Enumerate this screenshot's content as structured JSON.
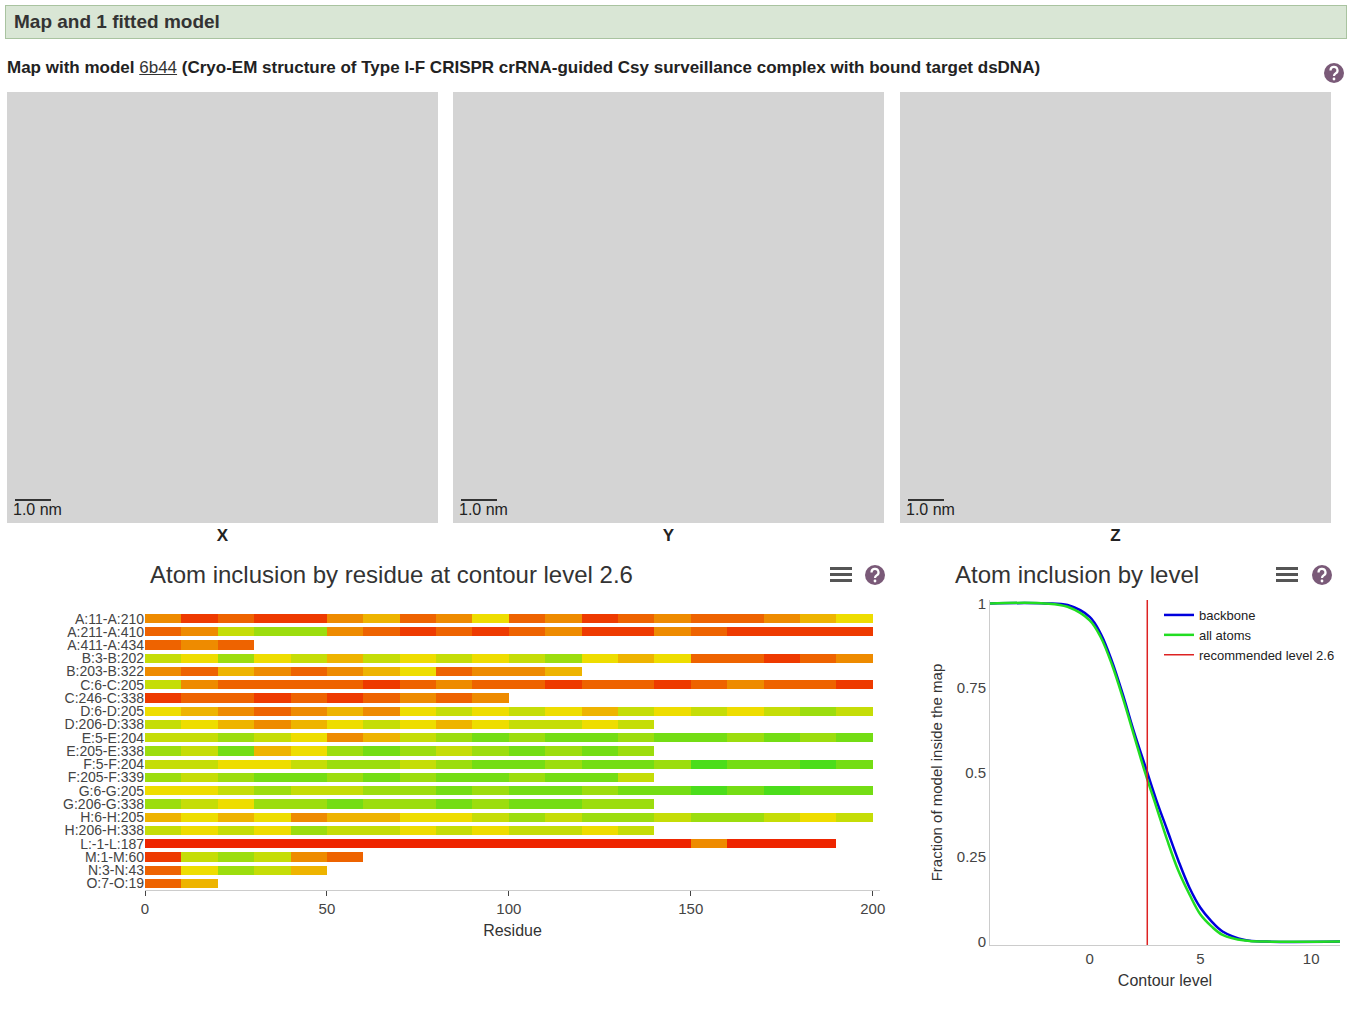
{
  "header": "Map and 1 fitted model",
  "subtitle": {
    "prefix": "Map with model",
    "model": "6b44",
    "description": "(Cryo-EM structure of Type I-F CRISPR crRNA-guided Csy surveillance complex with bound target dsDNA)"
  },
  "views": [
    {
      "label": "X",
      "scale_bar": "1.0 nm"
    },
    {
      "label": "Y",
      "scale_bar": "1.0 nm"
    },
    {
      "label": "Z",
      "scale_bar": "1.0 nm"
    }
  ],
  "chart_data": [
    {
      "type": "heatmap",
      "title": "Atom inclusion by residue at contour level 2.6",
      "x_label": "Residue",
      "x": [
        5,
        15,
        25,
        35,
        45,
        55,
        65,
        75,
        85,
        95,
        105,
        115,
        125,
        135,
        145,
        155,
        165,
        175,
        185,
        195
      ],
      "xlim": [
        0,
        202
      ],
      "xticks": [
        0,
        50,
        100,
        150,
        200
      ],
      "grid": false,
      "color_range": [
        0,
        1
      ],
      "colors": [
        "#ee1100",
        "#eedd00",
        "#22dd22"
      ],
      "rows": [
        {
          "name": "A:11-A:210",
          "values": [
            0.3,
            0.1,
            0.2,
            0.1,
            0.1,
            0.3,
            0.4,
            0.2,
            0.3,
            0.5,
            0.2,
            0.3,
            0.1,
            0.2,
            0.3,
            0.2,
            0.2,
            0.3,
            0.4,
            0.5
          ]
        },
        {
          "name": "A:211-A:410",
          "values": [
            0.2,
            0.3,
            0.6,
            0.7,
            0.7,
            0.3,
            0.2,
            0.1,
            0.2,
            0.1,
            0.2,
            0.3,
            0.1,
            0.1,
            0.3,
            0.2,
            0.1,
            0.1,
            0.1,
            0.1
          ]
        },
        {
          "name": "A:411-A:434",
          "values": [
            0.2,
            0.3,
            0.2
          ]
        },
        {
          "name": "B:3-B:202",
          "values": [
            0.6,
            0.5,
            0.7,
            0.5,
            0.6,
            0.4,
            0.6,
            0.5,
            0.6,
            0.5,
            0.6,
            0.7,
            0.5,
            0.4,
            0.5,
            0.2,
            0.2,
            0.1,
            0.2,
            0.3
          ]
        },
        {
          "name": "B:203-B:322",
          "values": [
            0.3,
            0.2,
            0.4,
            0.3,
            0.2,
            0.3,
            0.4,
            0.5,
            0.2,
            0.3,
            0.3,
            0.4
          ]
        },
        {
          "name": "C:6-C:205",
          "values": [
            0.6,
            0.3,
            0.2,
            0.2,
            0.2,
            0.2,
            0.1,
            0.2,
            0.3,
            0.2,
            0.2,
            0.1,
            0.2,
            0.2,
            0.1,
            0.2,
            0.3,
            0.2,
            0.2,
            0.1
          ]
        },
        {
          "name": "C:246-C:338",
          "values": [
            0.1,
            0.2,
            0.2,
            0.1,
            0.2,
            0.1,
            0.2,
            0.3,
            0.2,
            0.3
          ]
        },
        {
          "name": "D:6-D:205",
          "values": [
            0.5,
            0.4,
            0.3,
            0.2,
            0.3,
            0.4,
            0.3,
            0.5,
            0.6,
            0.5,
            0.6,
            0.5,
            0.4,
            0.6,
            0.5,
            0.6,
            0.5,
            0.6,
            0.7,
            0.6
          ]
        },
        {
          "name": "D:206-D:338",
          "values": [
            0.6,
            0.5,
            0.4,
            0.3,
            0.4,
            0.5,
            0.6,
            0.5,
            0.4,
            0.5,
            0.6,
            0.6,
            0.5,
            0.6
          ]
        },
        {
          "name": "E:5-E:204",
          "values": [
            0.6,
            0.6,
            0.7,
            0.6,
            0.5,
            0.3,
            0.4,
            0.6,
            0.7,
            0.8,
            0.7,
            0.8,
            0.8,
            0.7,
            0.8,
            0.8,
            0.7,
            0.8,
            0.7,
            0.8
          ]
        },
        {
          "name": "E:205-E:338",
          "values": [
            0.7,
            0.6,
            0.8,
            0.4,
            0.5,
            0.7,
            0.8,
            0.7,
            0.6,
            0.7,
            0.8,
            0.7,
            0.8,
            0.7
          ]
        },
        {
          "name": "F:5-F:204",
          "values": [
            0.6,
            0.6,
            0.5,
            0.5,
            0.6,
            0.7,
            0.7,
            0.6,
            0.7,
            0.8,
            0.8,
            0.7,
            0.8,
            0.8,
            0.7,
            0.9,
            0.8,
            0.8,
            0.9,
            0.8
          ]
        },
        {
          "name": "F:205-F:339",
          "values": [
            0.7,
            0.6,
            0.7,
            0.8,
            0.8,
            0.7,
            0.8,
            0.7,
            0.8,
            0.8,
            0.7,
            0.8,
            0.8,
            0.6
          ]
        },
        {
          "name": "G:6-G:205",
          "values": [
            0.5,
            0.5,
            0.6,
            0.7,
            0.6,
            0.6,
            0.7,
            0.7,
            0.8,
            0.7,
            0.8,
            0.8,
            0.7,
            0.8,
            0.8,
            0.9,
            0.8,
            0.9,
            0.8,
            0.8
          ]
        },
        {
          "name": "G:206-G:338",
          "values": [
            0.7,
            0.6,
            0.5,
            0.7,
            0.7,
            0.8,
            0.7,
            0.7,
            0.8,
            0.7,
            0.8,
            0.8,
            0.7,
            0.7
          ]
        },
        {
          "name": "H:6-H:205",
          "values": [
            0.4,
            0.5,
            0.4,
            0.5,
            0.3,
            0.4,
            0.4,
            0.5,
            0.5,
            0.6,
            0.7,
            0.6,
            0.7,
            0.7,
            0.6,
            0.7,
            0.7,
            0.6,
            0.5,
            0.6
          ]
        },
        {
          "name": "H:206-H:338",
          "values": [
            0.6,
            0.5,
            0.6,
            0.5,
            0.7,
            0.6,
            0.6,
            0.5,
            0.6,
            0.5,
            0.6,
            0.6,
            0.5,
            0.6
          ]
        },
        {
          "name": "L:-1-L:187",
          "values": [
            0.05,
            0.05,
            0.05,
            0.05,
            0.05,
            0.05,
            0.05,
            0.05,
            0.05,
            0.05,
            0.05,
            0.05,
            0.05,
            0.05,
            0.05,
            0.3,
            0.05,
            0.05,
            0.05
          ]
        },
        {
          "name": "M:1-M:60",
          "values": [
            0.1,
            0.6,
            0.7,
            0.6,
            0.3,
            0.2
          ]
        },
        {
          "name": "N:3-N:43",
          "values": [
            0.2,
            0.5,
            0.7,
            0.6,
            0.4
          ]
        },
        {
          "name": "O:7-O:19",
          "values": [
            0.2,
            0.4
          ]
        }
      ]
    },
    {
      "type": "line",
      "title": "Atom inclusion by level",
      "x_label": "Contour level",
      "y_label": "Fraction of model inside the map",
      "x": [
        -4.5,
        -2,
        -1,
        0,
        0.5,
        1,
        1.5,
        2,
        2.5,
        3,
        3.5,
        4,
        4.5,
        5,
        5.5,
        6,
        7,
        8,
        11.3
      ],
      "xlim": [
        -4.5,
        11.3
      ],
      "xticks": [
        0,
        5,
        10
      ],
      "ylim": [
        -0.01,
        1.01
      ],
      "yticks": [
        0,
        0.25,
        0.5,
        0.75,
        1
      ],
      "grid": false,
      "legend": "top right",
      "series": [
        {
          "name": "backbone",
          "color": "#0000dd",
          "values": [
            1,
            1,
            0.995,
            0.96,
            0.91,
            0.83,
            0.73,
            0.62,
            0.52,
            0.42,
            0.33,
            0.24,
            0.16,
            0.1,
            0.06,
            0.03,
            0.005,
            0,
            0
          ]
        },
        {
          "name": "all atoms",
          "color": "#22dd22",
          "values": [
            1,
            1,
            0.99,
            0.95,
            0.9,
            0.82,
            0.72,
            0.61,
            0.5,
            0.4,
            0.3,
            0.21,
            0.14,
            0.08,
            0.045,
            0.02,
            0.003,
            0,
            0
          ]
        }
      ],
      "reference_line": {
        "name": "recommended level 2.6",
        "x": 2.6,
        "color": "#dd2222"
      }
    }
  ]
}
